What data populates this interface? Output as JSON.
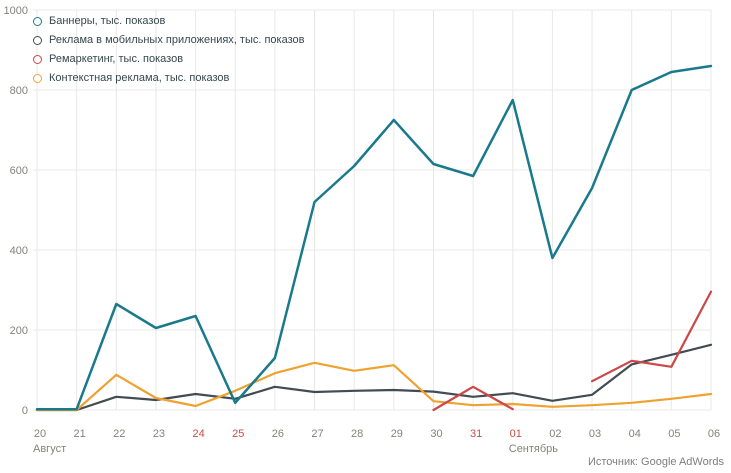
{
  "chart_data": {
    "type": "line",
    "title": "",
    "categories": [
      "20",
      "21",
      "22",
      "23",
      "24",
      "25",
      "26",
      "27",
      "28",
      "29",
      "30",
      "31",
      "01",
      "02",
      "03",
      "04",
      "05",
      "06"
    ],
    "month_labels": [
      {
        "index": 0,
        "label": "Август"
      },
      {
        "index": 12,
        "label": "Сентябрь"
      }
    ],
    "weekend_indices": [
      4,
      5,
      11,
      12
    ],
    "y_ticks": [
      0,
      200,
      400,
      600,
      800,
      1000
    ],
    "ylim": [
      0,
      1000
    ],
    "grid": true,
    "legend_position": "top-left",
    "series": [
      {
        "name": "Баннеры, тыс. показов",
        "color": "#1a7a8c",
        "values": [
          2,
          2,
          265,
          205,
          235,
          18,
          130,
          520,
          610,
          725,
          615,
          585,
          775,
          380,
          555,
          800,
          845,
          860
        ]
      },
      {
        "name": "Реклама в мобильных приложениях, тыс. показов",
        "color": "#434c52",
        "values": [
          0,
          0,
          33,
          25,
          40,
          28,
          58,
          45,
          48,
          50,
          46,
          33,
          42,
          23,
          38,
          114,
          138,
          163
        ]
      },
      {
        "name": "Ремаркетинг, тыс. показов",
        "color": "#cc4748",
        "values": [
          null,
          null,
          null,
          null,
          null,
          null,
          null,
          null,
          null,
          null,
          0,
          58,
          2,
          null,
          72,
          123,
          108,
          296
        ]
      },
      {
        "name": "Контекстная реклама, тыс. показов",
        "color": "#efa22f",
        "values": [
          0,
          0,
          88,
          30,
          10,
          48,
          92,
          118,
          98,
          112,
          22,
          12,
          15,
          8,
          12,
          18,
          28,
          40
        ]
      }
    ]
  },
  "colors": {
    "background": "#ffffff",
    "grid": "#e8e8e6",
    "tick_label": "#85827a",
    "weekend_label": "#cb4b47",
    "legend_text": "#37474f",
    "source_text": "#7e7e7e"
  },
  "source": {
    "label": "Источник: Google AdWords"
  }
}
